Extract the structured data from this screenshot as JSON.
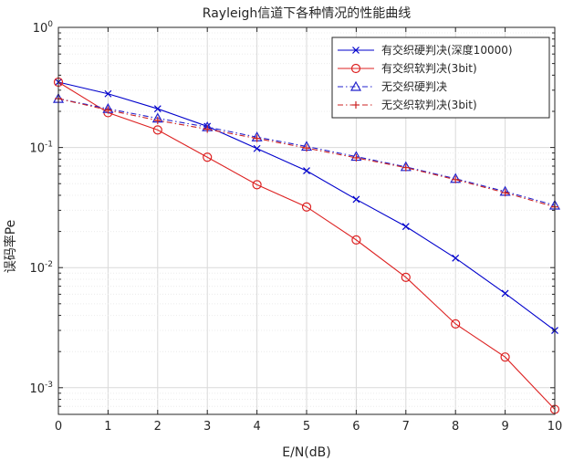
{
  "chart_data": {
    "type": "line",
    "title": "Rayleigh信道下各种情况的性能曲线",
    "xlabel": "E/N(dB)",
    "ylabel": "误码率Pe",
    "x": [
      0,
      1,
      2,
      3,
      4,
      5,
      6,
      7,
      8,
      9,
      10
    ],
    "x_ticks": [
      "0",
      "1",
      "2",
      "3",
      "4",
      "5",
      "6",
      "7",
      "8",
      "9",
      "10"
    ],
    "xlim": [
      0,
      10
    ],
    "ylim": [
      0.0006,
      1
    ],
    "yscale": "log",
    "y_ticks": [
      {
        "value": 1,
        "base": "10",
        "exp": "0"
      },
      {
        "value": 0.1,
        "base": "10",
        "exp": "-1"
      },
      {
        "value": 0.01,
        "base": "10",
        "exp": "-2"
      },
      {
        "value": 0.001,
        "base": "10",
        "exp": "-3"
      }
    ],
    "grid": true,
    "legend_position": "top-right",
    "series": [
      {
        "name": "有交织硬判决(深度10000)",
        "color": "#0000cc",
        "dash": "solid",
        "marker": "x",
        "values": [
          0.35,
          0.28,
          0.21,
          0.15,
          0.098,
          0.064,
          0.037,
          0.022,
          0.012,
          0.0061,
          0.003
        ]
      },
      {
        "name": "有交织软判决(3bit)",
        "color": "#dd2222",
        "dash": "solid",
        "marker": "o",
        "values": [
          0.35,
          0.195,
          0.14,
          0.083,
          0.049,
          0.032,
          0.017,
          0.0083,
          0.0034,
          0.0018,
          0.00066
        ]
      },
      {
        "name": "无交织硬判决",
        "color": "#2222cc",
        "dash": "dashdot",
        "marker": "triangle",
        "values": [
          0.255,
          0.21,
          0.175,
          0.148,
          0.122,
          0.102,
          0.084,
          0.069,
          0.055,
          0.043,
          0.033
        ]
      },
      {
        "name": "无交织软判决(3bit)",
        "color": "#cc2222",
        "dash": "dashdot",
        "marker": "plus",
        "values": [
          0.255,
          0.205,
          0.168,
          0.142,
          0.119,
          0.099,
          0.082,
          0.068,
          0.054,
          0.042,
          0.032
        ]
      }
    ]
  }
}
